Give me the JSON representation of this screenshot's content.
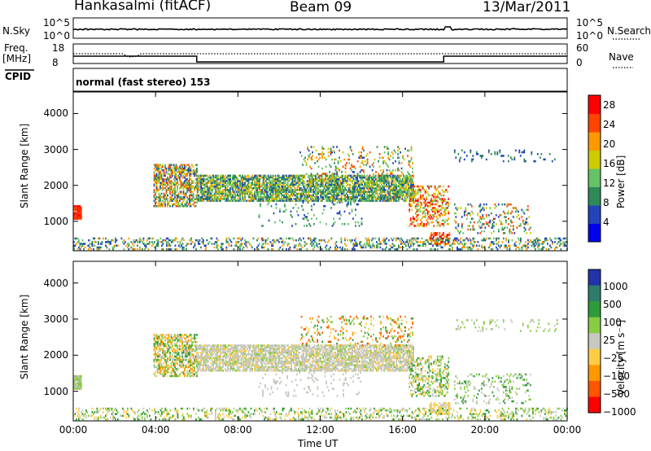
{
  "header": {
    "station": "Hankasalmi (fitACF)",
    "beam": "Beam 09",
    "date": "13/Mar/2011"
  },
  "noise_panel": {
    "left_label": "N.Sky",
    "right_label": "N.Search",
    "left_ticks": [
      "10^5",
      "10^0"
    ],
    "right_ticks": [
      "10^5",
      "10^0"
    ]
  },
  "freq_panel": {
    "left_label_1": "Freq.",
    "left_label_2": "[MHz]",
    "left_ticks": [
      "18",
      "8"
    ],
    "right_label": "Nave",
    "right_ticks": [
      "60",
      "0"
    ]
  },
  "cpid_panel": {
    "label": "CPID",
    "text": "normal (fast stereo) 153"
  },
  "chart_data": [
    {
      "type": "heatmap",
      "panel": "power",
      "ylabel": "Slant Range [km]",
      "y_ticks": [
        "4000",
        "3000",
        "2000",
        "1000"
      ],
      "y_tick_values": [
        4000,
        3000,
        2000,
        1000
      ],
      "ylim": [
        180,
        4600
      ],
      "colorbar_label": "Power [dB]",
      "colorbar_ticks": [
        "28",
        "24",
        "20",
        "16",
        "12",
        "8",
        "4"
      ],
      "colorbar_range": [
        0,
        30
      ],
      "colors": [
        "#0000ee",
        "#2244bb",
        "#2e8b57",
        "#66c266",
        "#cccc00",
        "#ff9900",
        "#ff4400",
        "#ff0000"
      ]
    },
    {
      "type": "heatmap",
      "panel": "velocity",
      "ylabel": "Slant Range [km]",
      "y_ticks": [
        "4000",
        "3000",
        "2000",
        "1000"
      ],
      "y_tick_values": [
        4000,
        3000,
        2000,
        1000
      ],
      "ylim": [
        180,
        4600
      ],
      "colorbar_label": "Velocity [m s⁻¹]",
      "colorbar_ticks": [
        "1000",
        "500",
        "100",
        "25",
        "−25",
        "−100",
        "−500",
        "−1000"
      ],
      "colors": [
        "#2233aa",
        "#2e7d6b",
        "#2e9b3a",
        "#88cc44",
        "#c8c8c0",
        "#ffcc44",
        "#ff9900",
        "#ff5500",
        "#ff0000"
      ]
    }
  ],
  "x_axis": {
    "label": "Time UT",
    "ticks": [
      "00:00",
      "04:00",
      "08:00",
      "12:00",
      "16:00",
      "20:00",
      "00:00"
    ],
    "tick_hours": [
      0,
      4,
      8,
      12,
      16,
      20,
      24
    ]
  }
}
